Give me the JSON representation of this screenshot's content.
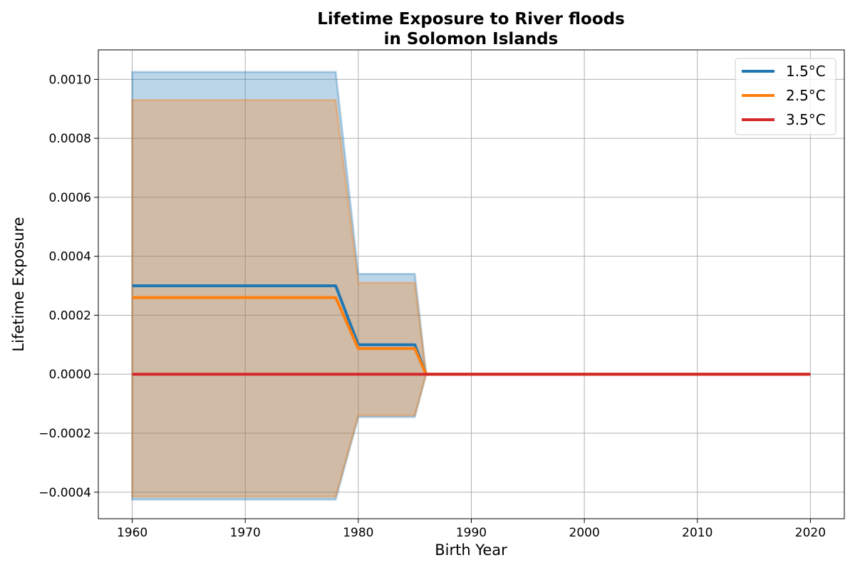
{
  "chart_data": {
    "type": "line",
    "title": "Lifetime Exposure to River floods",
    "subtitle": "in Solomon Islands",
    "xlabel": "Birth Year",
    "ylabel": "Lifetime Exposure",
    "xlim": [
      1957,
      2023
    ],
    "ylim": [
      -0.00049,
      0.0011
    ],
    "grid": true,
    "legend_position": "top-right",
    "x_ticks": [
      1960,
      1970,
      1980,
      1990,
      2000,
      2010,
      2020
    ],
    "x_tick_labels": [
      "1960",
      "1970",
      "1980",
      "1990",
      "2000",
      "2010",
      "2020"
    ],
    "y_ticks": [
      -0.0004,
      -0.0002,
      0.0,
      0.0002,
      0.0004,
      0.0006,
      0.0008,
      0.001
    ],
    "y_tick_labels": [
      "−0.0004",
      "−0.0002",
      "0.0000",
      "0.0002",
      "0.0004",
      "0.0006",
      "0.0008",
      "0.0010"
    ],
    "series": [
      {
        "name": "1.5°C",
        "color": "#1f77b4",
        "band_color": "#1f77b4",
        "x": [
          1960,
          1978,
          1980,
          1985,
          1986,
          2020
        ],
        "y": [
          0.0003,
          0.0003,
          0.0001,
          0.0001,
          0.0,
          0.0
        ],
        "lower": [
          -0.000425,
          -0.000425,
          -0.000145,
          -0.000145,
          0.0,
          0.0
        ],
        "upper": [
          0.001025,
          0.001025,
          0.00034,
          0.00034,
          0.0,
          0.0
        ]
      },
      {
        "name": "2.5°C",
        "color": "#ff7f0e",
        "band_color": "#ff7f0e",
        "x": [
          1960,
          1978,
          1980,
          1985,
          1986,
          2020
        ],
        "y": [
          0.00026,
          0.00026,
          8.7e-05,
          8.7e-05,
          0.0,
          0.0
        ],
        "lower": [
          -0.000415,
          -0.000415,
          -0.00014,
          -0.00014,
          0.0,
          0.0
        ],
        "upper": [
          0.00093,
          0.00093,
          0.00031,
          0.00031,
          0.0,
          0.0
        ]
      },
      {
        "name": "3.5°C",
        "color": "#d62728",
        "band_color": "#d62728",
        "x": [
          1960,
          2020
        ],
        "y": [
          0.0,
          0.0
        ],
        "lower": [
          0.0,
          0.0
        ],
        "upper": [
          0.0,
          0.0
        ]
      }
    ]
  }
}
